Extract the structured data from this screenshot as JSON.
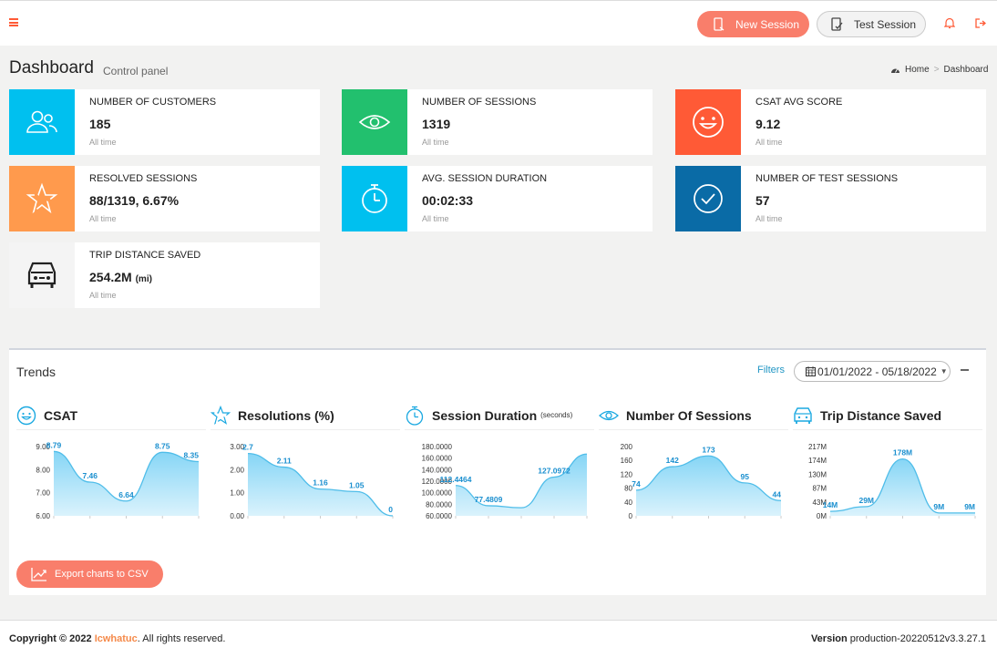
{
  "header": {
    "new_session_label": "New Session",
    "test_session_label": "Test Session",
    "accent_color": "#f97e6b"
  },
  "page": {
    "title": "Dashboard",
    "subtitle": "Control panel",
    "breadcrumb": [
      "Home",
      "Dashboard"
    ]
  },
  "stats": [
    {
      "label": "NUMBER OF CUSTOMERS",
      "value": "185",
      "period": "All time",
      "color": "#00c0ef",
      "icon": "users-icon"
    },
    {
      "label": "NUMBER OF SESSIONS",
      "value": "1319",
      "period": "All time",
      "color": "#22c06e",
      "icon": "eye-icon"
    },
    {
      "label": "CSAT AVG SCORE",
      "value": "9.12",
      "period": "All time",
      "color": "#ff5a36",
      "icon": "smile-icon"
    },
    {
      "label": "RESOLVED SESSIONS",
      "value": "88/1319, 6.67%",
      "period": "All time",
      "color": "#ff9a4d",
      "icon": "star-icon"
    },
    {
      "label": "AVG. SESSION DURATION",
      "value": "00:02:33",
      "period": "All time",
      "color": "#00c0ef",
      "icon": "stopwatch-icon"
    },
    {
      "label": "NUMBER OF TEST SESSIONS",
      "value": "57",
      "period": "All time",
      "color": "#0a6ba6",
      "icon": "check-circle-icon"
    },
    {
      "label": "TRIP DISTANCE SAVED",
      "value": "254.2M",
      "unit": "(mi)",
      "period": "All time",
      "color": "#f4f4f4",
      "icon": "car-icon"
    }
  ],
  "trends": {
    "title": "Trends",
    "filters_label": "Filters",
    "date_range": "01/01/2022 - 05/18/2022",
    "export_label": "Export charts to CSV"
  },
  "chart_data": [
    {
      "type": "area",
      "title": "CSAT",
      "x": [
        1,
        2,
        3,
        4,
        5
      ],
      "values": [
        8.79,
        7.46,
        6.64,
        8.75,
        8.35
      ],
      "labels": [
        "8.79",
        "7.46",
        "6.64",
        "8.75",
        "8.35"
      ],
      "yticks": [
        "9.00",
        "8.00",
        "7.00",
        "6.00"
      ],
      "ylim": [
        6,
        9
      ]
    },
    {
      "type": "area",
      "title": "Resolutions (%)",
      "x": [
        1,
        2,
        3,
        4,
        5
      ],
      "values": [
        2.7,
        2.11,
        1.16,
        1.05,
        0
      ],
      "labels": [
        "2.7",
        "2.11",
        "1.16",
        "1.05",
        "0"
      ],
      "yticks": [
        "3.00",
        "2.00",
        "1.00",
        "0.00"
      ],
      "ylim": [
        0,
        3
      ]
    },
    {
      "type": "area",
      "title": "Session Duration",
      "title_note": "(seconds)",
      "x": [
        1,
        2,
        3,
        4,
        5
      ],
      "values": [
        112.4464,
        77.4809,
        74.0,
        127.0972,
        167.0
      ],
      "labels": [
        "112.4464",
        "77.4809",
        "",
        "127.0972",
        ""
      ],
      "yticks": [
        "180.0000",
        "160.0000",
        "140.0000",
        "120.0000",
        "100.0000",
        "80.0000",
        "60.0000"
      ],
      "ylim": [
        60,
        180
      ]
    },
    {
      "type": "area",
      "title": "Number Of Sessions",
      "x": [
        1,
        2,
        3,
        4,
        5
      ],
      "values": [
        74,
        142,
        173,
        95,
        44
      ],
      "labels": [
        "74",
        "142",
        "173",
        "95",
        "44"
      ],
      "yticks": [
        "200",
        "160",
        "120",
        "80",
        "40",
        "0"
      ],
      "ylim": [
        0,
        200
      ]
    },
    {
      "type": "area",
      "title": "Trip Distance Saved",
      "x": [
        1,
        2,
        3,
        4,
        5
      ],
      "values": [
        14,
        29,
        178,
        9,
        9
      ],
      "labels": [
        "14M",
        "29M",
        "178M",
        "9M",
        "9M"
      ],
      "yticks": [
        "217M",
        "174M",
        "130M",
        "87M",
        "43M",
        "0M"
      ],
      "ylim": [
        0,
        217
      ]
    }
  ],
  "footer": {
    "copyright_prefix": "Copyright © 2022",
    "brand": "Icwhatuc",
    "copyright_suffix": ". All rights reserved.",
    "version_label": "Version",
    "version_value": "production-20220512v3.3.27.1"
  }
}
